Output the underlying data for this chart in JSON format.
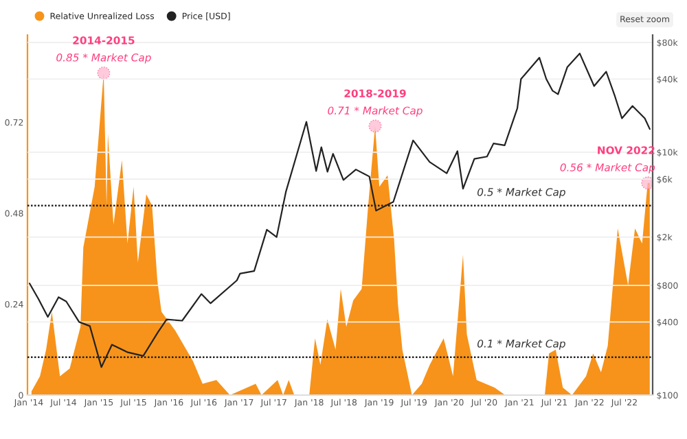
{
  "chart_data": {
    "type": "area",
    "xlim": [
      "2013-12-25",
      "2022-11-25"
    ],
    "xticks": [
      {
        "value": "2014-01-01",
        "label": "Jan '14"
      },
      {
        "value": "2014-07-01",
        "label": "Jul '14"
      },
      {
        "value": "2015-01-01",
        "label": "Jan '15"
      },
      {
        "value": "2015-07-01",
        "label": "Jul '15"
      },
      {
        "value": "2016-01-01",
        "label": "Jan '16"
      },
      {
        "value": "2016-07-01",
        "label": "Jul '16"
      },
      {
        "value": "2017-01-01",
        "label": "Jan '17"
      },
      {
        "value": "2017-07-01",
        "label": "Jul '17"
      },
      {
        "value": "2018-01-01",
        "label": "Jan '18"
      },
      {
        "value": "2018-07-01",
        "label": "Jul '18"
      },
      {
        "value": "2019-01-01",
        "label": "Jan '19"
      },
      {
        "value": "2019-07-01",
        "label": "Jul '19"
      },
      {
        "value": "2020-01-01",
        "label": "Jan '20"
      },
      {
        "value": "2020-07-01",
        "label": "Jul '20"
      },
      {
        "value": "2021-01-01",
        "label": "Jan '21"
      },
      {
        "value": "2021-07-01",
        "label": "Jul '21"
      },
      {
        "value": "2022-01-01",
        "label": "Jan '22"
      },
      {
        "value": "2022-07-01",
        "label": "Jul '22"
      }
    ],
    "ylim": [
      0,
      0.95
    ],
    "yticks": [
      0,
      0.24,
      0.48,
      0.72
    ],
    "y2lim": [
      100,
      92000
    ],
    "log": "y2",
    "y2ticks": [
      {
        "value": 100,
        "label": "$100"
      },
      {
        "value": 400,
        "label": "$400"
      },
      {
        "value": 800,
        "label": "$800"
      },
      {
        "value": 2000,
        "label": "$2k"
      },
      {
        "value": 6000,
        "label": "$6k"
      },
      {
        "value": 10000,
        "label": "$10k"
      },
      {
        "value": 40000,
        "label": "$40k"
      },
      {
        "value": 80000,
        "label": "$80k"
      }
    ],
    "grid": "y",
    "legend": "top left",
    "series": [
      {
        "name": "Relative Unrealized Loss",
        "color": "#f7931a",
        "x": [
          "2014-01-15",
          "2014-02-28",
          "2014-04-01",
          "2014-05-01",
          "2014-06-12",
          "2014-08-02",
          "2014-09-27",
          "2014-10-12",
          "2014-12-10",
          "2015-01-26",
          "2015-02-10",
          "2015-02-17",
          "2015-03-18",
          "2015-05-01",
          "2015-05-30",
          "2015-07-01",
          "2015-07-23",
          "2015-09-05",
          "2015-10-05",
          "2015-11-02",
          "2015-11-23",
          "2016-02-03",
          "2016-05-05",
          "2016-06-24",
          "2016-09-04",
          "2016-11-14",
          "2017-03-28",
          "2017-04-27",
          "2017-07-20",
          "2017-08-18",
          "2017-09-16",
          "2017-10-15",
          "2018-01-01",
          "2018-01-31",
          "2018-02-28",
          "2018-04-05",
          "2018-05-18",
          "2018-06-14",
          "2018-07-13",
          "2018-08-18",
          "2018-10-01",
          "2018-11-04",
          "2018-12-10",
          "2019-01-01",
          "2019-02-13",
          "2019-03-19",
          "2019-04-08",
          "2019-05-01",
          "2019-06-20",
          "2019-08-10",
          "2019-09-21",
          "2019-12-02",
          "2020-01-20",
          "2020-03-12",
          "2020-04-01",
          "2020-05-22",
          "2020-08-23",
          "2020-10-18",
          "2021-05-12",
          "2021-06-03",
          "2021-07-08",
          "2021-08-14",
          "2021-10-01",
          "2021-12-13",
          "2022-01-19",
          "2022-03-01",
          "2022-04-05",
          "2022-05-27",
          "2022-07-20",
          "2022-08-25",
          "2022-10-01",
          "2022-10-30",
          "2022-11-10"
        ],
        "values": [
          0.01,
          0.05,
          0.12,
          0.22,
          0.05,
          0.07,
          0.18,
          0.39,
          0.55,
          0.85,
          0.5,
          0.69,
          0.45,
          0.62,
          0.4,
          0.55,
          0.35,
          0.53,
          0.5,
          0.3,
          0.22,
          0.17,
          0.09,
          0.03,
          0.04,
          0.0,
          0.03,
          0.0,
          0.04,
          0.0,
          0.04,
          0.0,
          0.0,
          0.15,
          0.08,
          0.2,
          0.12,
          0.28,
          0.18,
          0.25,
          0.28,
          0.5,
          0.71,
          0.55,
          0.58,
          0.41,
          0.24,
          0.12,
          0.0,
          0.03,
          0.08,
          0.15,
          0.05,
          0.37,
          0.16,
          0.04,
          0.02,
          0.0,
          0.0,
          0.11,
          0.12,
          0.02,
          0.0,
          0.05,
          0.11,
          0.06,
          0.13,
          0.44,
          0.29,
          0.44,
          0.4,
          0.56,
          0.56
        ]
      },
      {
        "name": "Price [USD]",
        "type": "line",
        "axis": "y2",
        "color": "#222222",
        "x": [
          "2014-01-05",
          "2014-02-20",
          "2014-04-10",
          "2014-06-05",
          "2014-07-15",
          "2014-09-20",
          "2014-11-15",
          "2015-01-14",
          "2015-03-10",
          "2015-06-01",
          "2015-08-20",
          "2015-11-05",
          "2015-12-20",
          "2016-03-10",
          "2016-06-18",
          "2016-08-05",
          "2016-12-20",
          "2017-01-05",
          "2017-03-20",
          "2017-05-25",
          "2017-07-15",
          "2017-09-01",
          "2017-12-17",
          "2018-02-06",
          "2018-03-05",
          "2018-04-06",
          "2018-05-05",
          "2018-06-28",
          "2018-09-01",
          "2018-11-10",
          "2018-12-15",
          "2019-03-15",
          "2019-06-26",
          "2019-09-20",
          "2019-12-18",
          "2020-02-12",
          "2020-03-12",
          "2020-05-10",
          "2020-07-15",
          "2020-08-18",
          "2020-10-15",
          "2020-12-20",
          "2021-01-08",
          "2021-04-14",
          "2021-05-20",
          "2021-06-22",
          "2021-07-20",
          "2021-09-06",
          "2021-11-10",
          "2022-01-24",
          "2022-03-28",
          "2022-05-12",
          "2022-06-18",
          "2022-08-12",
          "2022-10-15",
          "2022-11-10"
        ],
        "values": [
          830,
          620,
          440,
          640,
          590,
          400,
          370,
          170,
          260,
          225,
          210,
          330,
          420,
          410,
          680,
          570,
          880,
          1000,
          1050,
          2300,
          2000,
          4700,
          17800,
          7000,
          11000,
          6900,
          9700,
          5900,
          7200,
          6300,
          3300,
          3900,
          12500,
          8300,
          6700,
          10200,
          5000,
          8800,
          9200,
          11800,
          11400,
          23000,
          40000,
          60000,
          40000,
          32000,
          30000,
          50000,
          65000,
          35000,
          46000,
          29000,
          19000,
          24000,
          19000,
          15500
        ]
      }
    ],
    "ref_lines": [
      {
        "axis": "y",
        "value": 0.5,
        "label": "0.5 * Market Cap",
        "line_style": "dotted",
        "color": "#222222"
      },
      {
        "axis": "y",
        "value": 0.1,
        "label": "0.1 * Market Cap",
        "line_style": "dotted",
        "color": "#222222"
      }
    ],
    "annotations": [
      {
        "text": "2014-2015",
        "x": "2015-01-26",
        "y": 0.85
      },
      {
        "text": "0.85 * Market Cap",
        "x": "2015-01-26",
        "y": 0.85
      },
      {
        "text": "2018-2019",
        "x": "2018-12-10",
        "y": 0.71
      },
      {
        "text": "0.71 * Market Cap",
        "x": "2018-12-10",
        "y": 0.71
      },
      {
        "text": "NOV 2022",
        "x": "2022-10-30",
        "y": 0.56
      },
      {
        "text": "0.56 * Market Cap",
        "x": "2022-10-30",
        "y": 0.56
      },
      "Reset zoom"
    ]
  }
}
